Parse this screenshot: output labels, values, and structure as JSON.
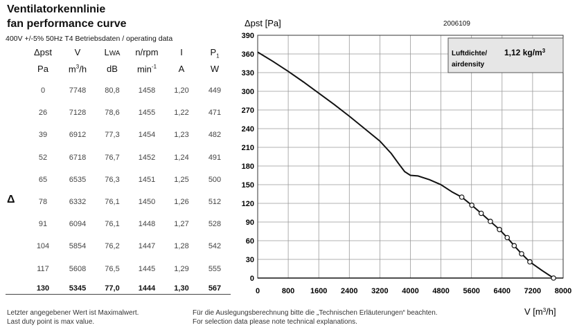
{
  "title_line1": "Ventilatorkennlinie",
  "title_line2": "fan performance curve",
  "subtitle": "400V +/-5% 50Hz T4 Betriebsdaten / operating data",
  "doc_number": "2006109",
  "table": {
    "headers": [
      "Δpst",
      "V",
      "LWA",
      "n/rpm",
      "I",
      "P1"
    ],
    "units": [
      "Pa",
      "m3/h",
      "dB",
      "min-1",
      "A",
      "W"
    ],
    "rows": [
      [
        "0",
        "7748",
        "80,8",
        "1458",
        "1,20",
        "449"
      ],
      [
        "26",
        "7128",
        "78,6",
        "1455",
        "1,22",
        "471"
      ],
      [
        "39",
        "6912",
        "77,3",
        "1454",
        "1,23",
        "482"
      ],
      [
        "52",
        "6718",
        "76,7",
        "1452",
        "1,24",
        "491"
      ],
      [
        "65",
        "6535",
        "76,3",
        "1451",
        "1,25",
        "500"
      ],
      [
        "78",
        "6332",
        "76,1",
        "1450",
        "1,26",
        "512"
      ],
      [
        "91",
        "6094",
        "76,1",
        "1448",
        "1,27",
        "528"
      ],
      [
        "104",
        "5854",
        "76,2",
        "1447",
        "1,28",
        "542"
      ],
      [
        "117",
        "5608",
        "76,5",
        "1445",
        "1,29",
        "555"
      ],
      [
        "130",
        "5345",
        "77,0",
        "1444",
        "1,30",
        "567"
      ]
    ]
  },
  "delta_marker": "Δ",
  "legend_box": {
    "label_de": "Luftdichte/",
    "label_en": "airdensity",
    "value": "1,12 kg/m3"
  },
  "footer": {
    "left_de": "Letzter angegebener Wert ist Maximalwert.",
    "left_en": "Last duty point is max value.",
    "right_de": "Für die Auslegungsberechnung bitte die „Technischen Erläuterungen“ beachten.",
    "right_en": "For selection data please note technical explanations."
  },
  "chart_data": {
    "type": "line",
    "ylabel": "Δpst [Pa]",
    "xlabel": "V [m3/h]",
    "xlim": [
      0,
      8000
    ],
    "ylim": [
      0,
      390
    ],
    "xticks": [
      0,
      800,
      1600,
      2400,
      3200,
      4000,
      4800,
      5600,
      6400,
      7200,
      8000
    ],
    "yticks": [
      0,
      30,
      60,
      90,
      120,
      150,
      180,
      210,
      240,
      270,
      300,
      330,
      360,
      390
    ],
    "grid": true,
    "curve": [
      [
        0,
        363
      ],
      [
        400,
        348
      ],
      [
        800,
        332
      ],
      [
        1200,
        315
      ],
      [
        1600,
        297
      ],
      [
        2000,
        279
      ],
      [
        2400,
        260
      ],
      [
        2800,
        240
      ],
      [
        3200,
        220
      ],
      [
        3500,
        200
      ],
      [
        3700,
        183
      ],
      [
        3850,
        171
      ],
      [
        4000,
        165
      ],
      [
        4200,
        164
      ],
      [
        4500,
        158
      ],
      [
        4800,
        150
      ],
      [
        5100,
        138
      ],
      [
        5345,
        130
      ],
      [
        5608,
        117
      ],
      [
        5854,
        104
      ],
      [
        6094,
        91
      ],
      [
        6332,
        78
      ],
      [
        6535,
        65
      ],
      [
        6718,
        52
      ],
      [
        6912,
        39
      ],
      [
        7128,
        26
      ],
      [
        7450,
        12
      ],
      [
        7748,
        0
      ]
    ],
    "points": [
      [
        5345,
        130
      ],
      [
        5608,
        117
      ],
      [
        5854,
        104
      ],
      [
        6094,
        91
      ],
      [
        6332,
        78
      ],
      [
        6535,
        65
      ],
      [
        6718,
        52
      ],
      [
        6912,
        39
      ],
      [
        7128,
        26
      ],
      [
        7748,
        0
      ]
    ]
  }
}
